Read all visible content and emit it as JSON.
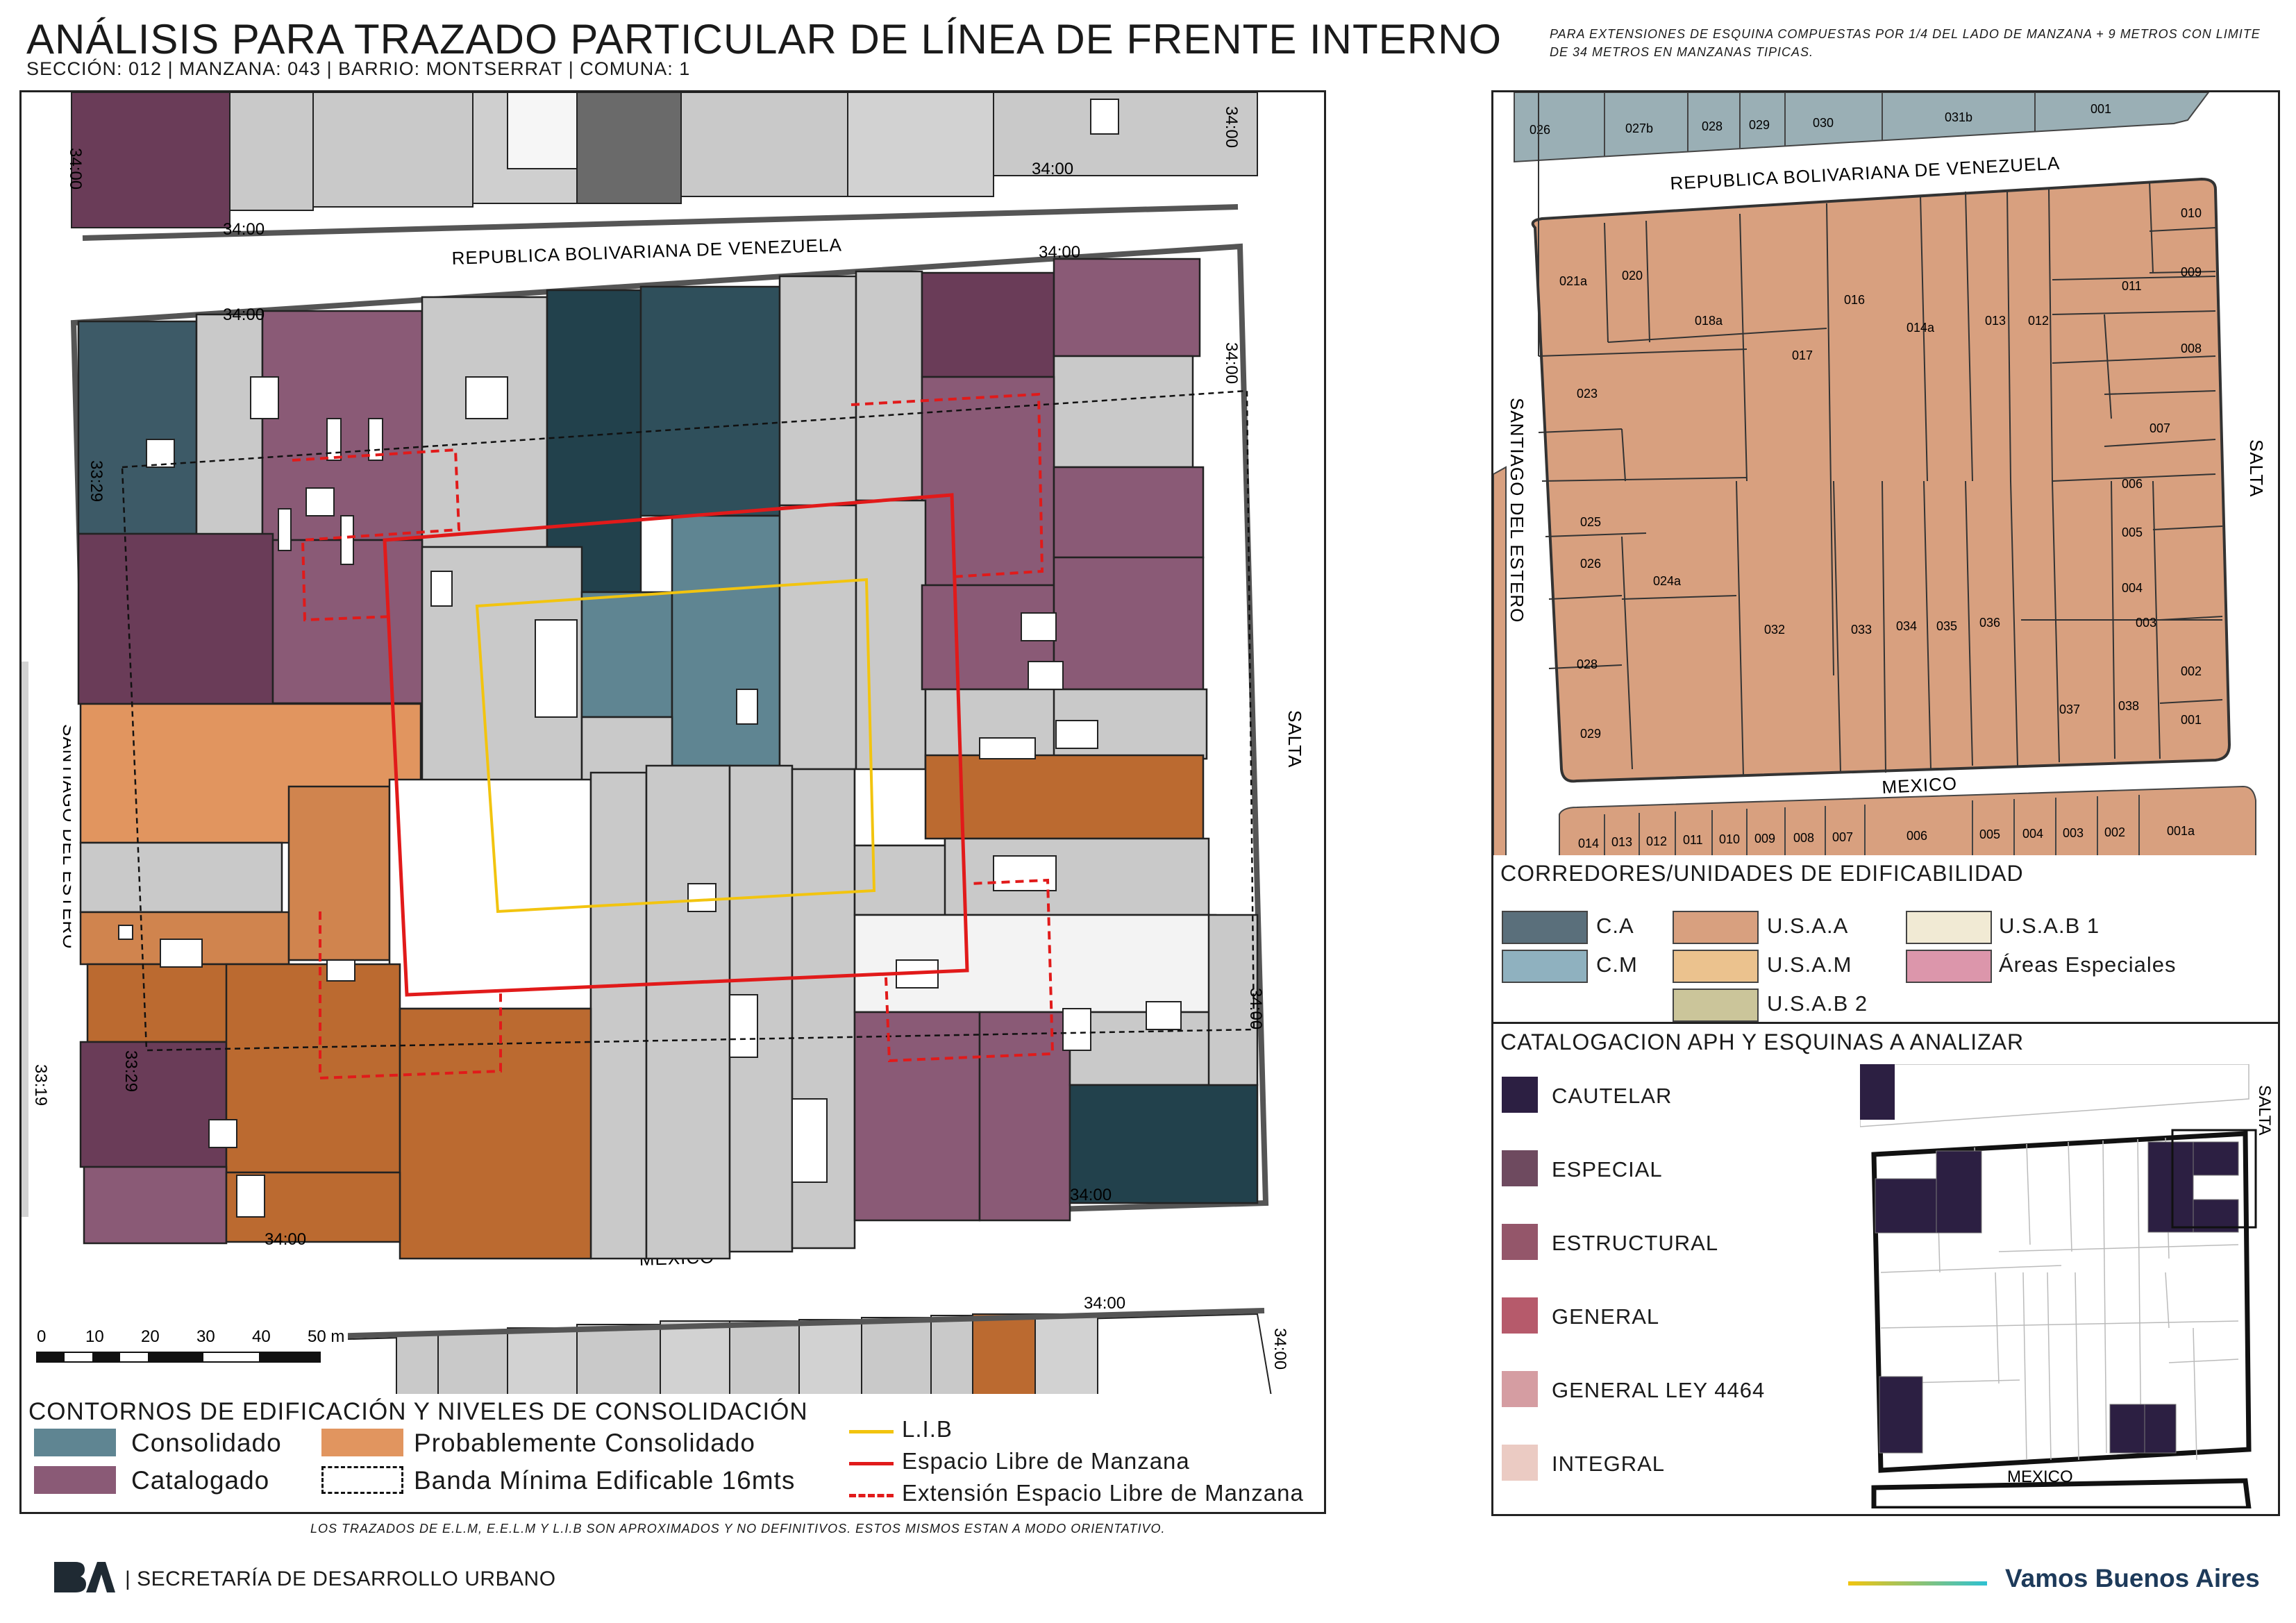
{
  "header": {
    "title": "ANÁLISIS PARA TRAZADO PARTICULAR DE LÍNEA DE FRENTE INTERNO",
    "subtitle": "SECCIÓN: 012 |  MANZANA: 043 | BARRIO: MONTSERRAT | COMUNA: 1",
    "note": "PARA EXTENSIONES DE ESQUINA COMPUESTAS POR 1/4 DEL LADO DE MANZANA + 9 METROS CON LIMITE DE 34 METROS EN MANZANAS TIPICAS."
  },
  "main_map": {
    "streets": {
      "top": "REPUBLICA BOLIVARIANA DE VENEZUELA",
      "left": "SANTIAGO DEL ESTERO",
      "right": "SALTA",
      "bottom": "MEXICO"
    },
    "dimensions": {
      "d1": "34:00",
      "d2": "34:00",
      "d3": "34:00",
      "d4": "34:00",
      "d5": "34:00",
      "d6": "34:00",
      "d7": "34:00",
      "d8": "34:00",
      "d9": "34:00",
      "d10": "34:00",
      "d11": "34:00",
      "d12": "33:29",
      "d13": "33:29",
      "d14": "33:19"
    },
    "scale": {
      "ticks": [
        "0",
        "10",
        "20",
        "30",
        "40",
        "50 m"
      ]
    }
  },
  "right_map": {
    "streets": {
      "top": "REPUBLICA BOLIVARIANA DE VENEZUELA",
      "left": "SANTIAGO DEL ESTERO",
      "right": "SALTA",
      "bottom": "MEXICO"
    },
    "top_parcels": [
      "026",
      "027b",
      "028",
      "029",
      "030",
      "031b",
      "001"
    ],
    "bottom_parcels": [
      "014",
      "013",
      "012",
      "011",
      "010",
      "009",
      "008",
      "007",
      "006",
      "005",
      "004",
      "003",
      "002",
      "001a"
    ],
    "parcels": {
      "p010": "010",
      "p009": "009",
      "p008": "008",
      "p011": "011",
      "p007": "007",
      "p006": "006",
      "p005": "005",
      "p004": "004",
      "p003": "003",
      "p002": "002",
      "p001": "001",
      "p037": "037",
      "p038": "038",
      "p012": "012",
      "p013": "013",
      "p014a": "014a",
      "p016": "016",
      "p017": "017",
      "p018a": "018a",
      "p020": "020",
      "p021a": "021a",
      "p023": "023",
      "p025": "025",
      "p026": "026",
      "p024a": "024a",
      "p028": "028",
      "p029": "029",
      "p032": "032",
      "p033": "033",
      "p034": "034",
      "p035": "035",
      "p036": "036"
    }
  },
  "corridors": {
    "title": "CORREDORES/UNIDADES DE EDIFICABILIDAD",
    "items": [
      {
        "label": "C.A",
        "color": "#5a6f7b"
      },
      {
        "label": "C.M",
        "color": "#8fb1bf"
      },
      {
        "label": "U.S.A.A",
        "color": "#d8a07f"
      },
      {
        "label": "U.S.A.M",
        "color": "#ebc28e"
      },
      {
        "label": "U.S.A.B 2",
        "color": "#cbc59a"
      },
      {
        "label": "U.S.A.B 1",
        "color": "#f1ead4"
      },
      {
        "label": "Áreas Especiales",
        "color": "#dc96ab"
      }
    ]
  },
  "catalog": {
    "title": "CATALOGACION APH Y ESQUINAS A ANALIZAR",
    "items": [
      {
        "label": "CAUTELAR",
        "color": "#2c1f42"
      },
      {
        "label": "ESPECIAL",
        "color": "#6e4a5f"
      },
      {
        "label": "ESTRUCTURAL",
        "color": "#94566a"
      },
      {
        "label": "GENERAL",
        "color": "#b65a6b"
      },
      {
        "label": "GENERAL LEY 4464",
        "color": "#d59da2"
      },
      {
        "label": "INTEGRAL",
        "color": "#ebcbc3"
      }
    ],
    "map_streets": {
      "right": "SALTA",
      "bottom": "MEXICO"
    }
  },
  "legend": {
    "title": "CONTORNOS DE EDIFICACIÓN Y NIVELES DE CONSOLIDACIÓN",
    "consolidado": "Consolidado",
    "catalogado": "Catalogado",
    "probable": "Probablemente Consolidado",
    "banda": "Banda Mínima Edificable 16mts",
    "lib": "L.I.B",
    "elm": "Espacio Libre de Manzana",
    "eelm": "Extensión Espacio Libre de Manzana",
    "colors": {
      "consolidado": "#5f8592",
      "catalogado": "#8a5a76",
      "probable": "#e1955f",
      "lib": "#f2c40f",
      "elm": "#e11a1a"
    }
  },
  "disclaimer": "LOS TRAZADOS DE E.L.M, E.E.L.M Y L.I.B SON APROXIMADOS Y NO DEFINITIVOS. ESTOS MISMOS ESTAN A MODO ORIENTATIVO.",
  "footer": {
    "logo": "BA",
    "org": "| SECRETARÍA DE DESARROLLO URBANO",
    "slogan": "Vamos Buenos Aires"
  }
}
